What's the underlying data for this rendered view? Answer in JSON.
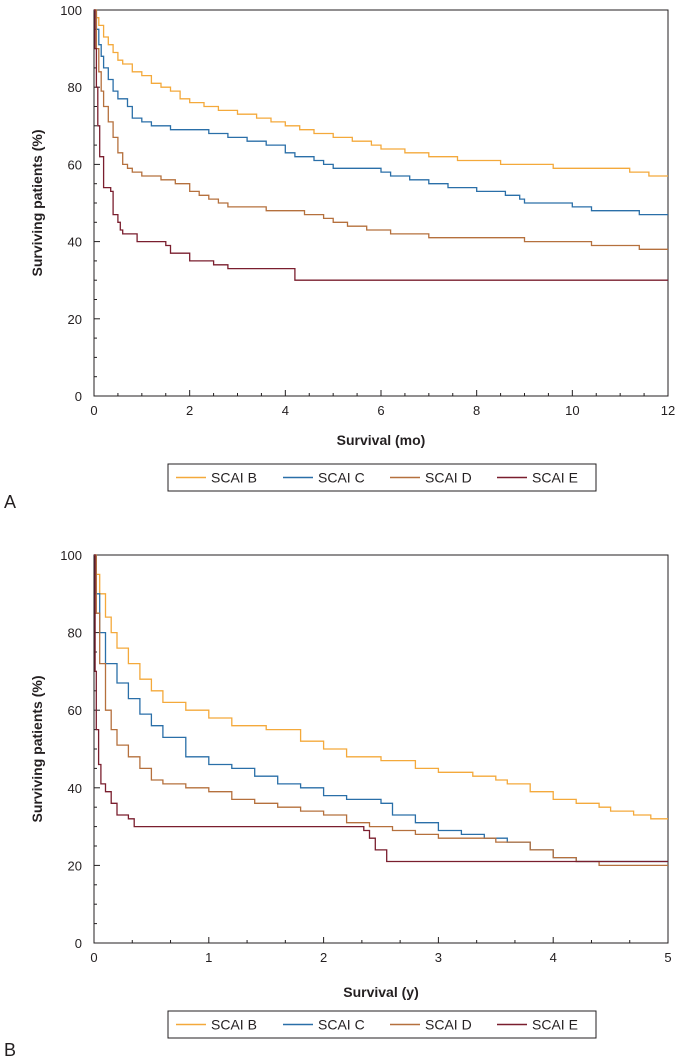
{
  "chart_data": [
    {
      "type": "line",
      "panel_label": "A",
      "title": "",
      "xlabel": "Survival (mo)",
      "ylabel": "Surviving patients (%)",
      "xlim": [
        0,
        12
      ],
      "ylim": [
        0,
        100
      ],
      "xticks": [
        0,
        2,
        4,
        6,
        8,
        10,
        12
      ],
      "yticks": [
        0,
        20,
        40,
        60,
        80,
        100
      ],
      "legend_position": "bottom",
      "series": [
        {
          "name": "SCAI B",
          "color": "#f4a93b",
          "points": [
            [
              0,
              100
            ],
            [
              0.05,
              98
            ],
            [
              0.1,
              96
            ],
            [
              0.2,
              93
            ],
            [
              0.3,
              91
            ],
            [
              0.4,
              89
            ],
            [
              0.5,
              87
            ],
            [
              0.6,
              86
            ],
            [
              0.8,
              84
            ],
            [
              1.0,
              83
            ],
            [
              1.2,
              81
            ],
            [
              1.4,
              80
            ],
            [
              1.6,
              79
            ],
            [
              1.8,
              77
            ],
            [
              2.0,
              76
            ],
            [
              2.3,
              75
            ],
            [
              2.6,
              74
            ],
            [
              3.0,
              73
            ],
            [
              3.4,
              72
            ],
            [
              3.7,
              71
            ],
            [
              4.0,
              70
            ],
            [
              4.3,
              69
            ],
            [
              4.6,
              68
            ],
            [
              5.0,
              67
            ],
            [
              5.4,
              66
            ],
            [
              5.8,
              65
            ],
            [
              6.0,
              64
            ],
            [
              6.5,
              63
            ],
            [
              7.0,
              62
            ],
            [
              7.6,
              61
            ],
            [
              8.0,
              61
            ],
            [
              8.5,
              60
            ],
            [
              9.0,
              60
            ],
            [
              9.6,
              59
            ],
            [
              10.2,
              59
            ],
            [
              10.8,
              59
            ],
            [
              11.2,
              58
            ],
            [
              11.6,
              57
            ],
            [
              12,
              57
            ]
          ]
        },
        {
          "name": "SCAI C",
          "color": "#2a6fa8",
          "points": [
            [
              0,
              100
            ],
            [
              0.05,
              95
            ],
            [
              0.1,
              91
            ],
            [
              0.15,
              88
            ],
            [
              0.2,
              85
            ],
            [
              0.3,
              82
            ],
            [
              0.4,
              79
            ],
            [
              0.5,
              77
            ],
            [
              0.7,
              75
            ],
            [
              0.8,
              72
            ],
            [
              1.0,
              71
            ],
            [
              1.2,
              70
            ],
            [
              1.6,
              69
            ],
            [
              2.0,
              69
            ],
            [
              2.4,
              68
            ],
            [
              2.8,
              67
            ],
            [
              3.2,
              66
            ],
            [
              3.6,
              65
            ],
            [
              4.0,
              63
            ],
            [
              4.2,
              62
            ],
            [
              4.6,
              61
            ],
            [
              4.8,
              60
            ],
            [
              5.0,
              59
            ],
            [
              5.6,
              59
            ],
            [
              6.0,
              58
            ],
            [
              6.2,
              57
            ],
            [
              6.6,
              56
            ],
            [
              7.0,
              55
            ],
            [
              7.4,
              54
            ],
            [
              8.0,
              53
            ],
            [
              8.6,
              52
            ],
            [
              8.9,
              51
            ],
            [
              9.0,
              50
            ],
            [
              9.6,
              50
            ],
            [
              10.0,
              49
            ],
            [
              10.4,
              48
            ],
            [
              11.0,
              48
            ],
            [
              11.4,
              47
            ],
            [
              12,
              47
            ]
          ]
        },
        {
          "name": "SCAI D",
          "color": "#b5703d",
          "points": [
            [
              0,
              100
            ],
            [
              0.05,
              90
            ],
            [
              0.1,
              84
            ],
            [
              0.15,
              79
            ],
            [
              0.2,
              75
            ],
            [
              0.3,
              71
            ],
            [
              0.4,
              67
            ],
            [
              0.5,
              63
            ],
            [
              0.6,
              60
            ],
            [
              0.7,
              59
            ],
            [
              0.8,
              58
            ],
            [
              1.0,
              57
            ],
            [
              1.4,
              56
            ],
            [
              1.7,
              55
            ],
            [
              2.0,
              53
            ],
            [
              2.2,
              52
            ],
            [
              2.4,
              51
            ],
            [
              2.6,
              50
            ],
            [
              2.8,
              49
            ],
            [
              3.2,
              49
            ],
            [
              3.6,
              48
            ],
            [
              4.0,
              48
            ],
            [
              4.4,
              47
            ],
            [
              4.8,
              46
            ],
            [
              5.0,
              45
            ],
            [
              5.3,
              44
            ],
            [
              5.7,
              43
            ],
            [
              6.2,
              42
            ],
            [
              6.6,
              42
            ],
            [
              7.0,
              41
            ],
            [
              8.0,
              41
            ],
            [
              8.5,
              41
            ],
            [
              9.0,
              40
            ],
            [
              9.6,
              40
            ],
            [
              10.4,
              39
            ],
            [
              11.0,
              39
            ],
            [
              11.4,
              38
            ],
            [
              12,
              38
            ]
          ]
        },
        {
          "name": "SCAI E",
          "color": "#7a1e2e",
          "points": [
            [
              0,
              100
            ],
            [
              0.02,
              90
            ],
            [
              0.05,
              80
            ],
            [
              0.08,
              70
            ],
            [
              0.12,
              62
            ],
            [
              0.2,
              54
            ],
            [
              0.35,
              53
            ],
            [
              0.4,
              47
            ],
            [
              0.5,
              45
            ],
            [
              0.55,
              43
            ],
            [
              0.6,
              42
            ],
            [
              0.8,
              42
            ],
            [
              0.9,
              40
            ],
            [
              1.0,
              40
            ],
            [
              1.5,
              39
            ],
            [
              1.6,
              37
            ],
            [
              2.0,
              35
            ],
            [
              2.5,
              34
            ],
            [
              2.8,
              33
            ],
            [
              3.0,
              33
            ],
            [
              3.5,
              33
            ],
            [
              4.0,
              33
            ],
            [
              4.2,
              30
            ],
            [
              5.0,
              30
            ],
            [
              12,
              30
            ]
          ]
        }
      ]
    },
    {
      "type": "line",
      "panel_label": "B",
      "title": "",
      "xlabel": "Survival (y)",
      "ylabel": "Surviving patients (%)",
      "xlim": [
        0,
        5
      ],
      "ylim": [
        0,
        100
      ],
      "xticks": [
        0,
        1,
        2,
        3,
        4,
        5
      ],
      "yticks": [
        0,
        20,
        40,
        60,
        80,
        100
      ],
      "legend_position": "bottom",
      "series": [
        {
          "name": "SCAI B",
          "color": "#f4a93b",
          "points": [
            [
              0,
              100
            ],
            [
              0.02,
              95
            ],
            [
              0.05,
              90
            ],
            [
              0.1,
              84
            ],
            [
              0.15,
              80
            ],
            [
              0.2,
              76
            ],
            [
              0.3,
              72
            ],
            [
              0.4,
              68
            ],
            [
              0.5,
              65
            ],
            [
              0.6,
              62
            ],
            [
              0.8,
              60
            ],
            [
              1.0,
              58
            ],
            [
              1.2,
              56
            ],
            [
              1.5,
              55
            ],
            [
              1.8,
              52
            ],
            [
              2.0,
              50
            ],
            [
              2.2,
              48
            ],
            [
              2.5,
              47
            ],
            [
              2.8,
              45
            ],
            [
              3.0,
              44
            ],
            [
              3.3,
              43
            ],
            [
              3.5,
              42
            ],
            [
              3.6,
              41
            ],
            [
              3.8,
              39
            ],
            [
              4.0,
              37
            ],
            [
              4.2,
              36
            ],
            [
              4.4,
              35
            ],
            [
              4.5,
              34
            ],
            [
              4.7,
              33
            ],
            [
              4.85,
              32
            ],
            [
              5.0,
              32
            ]
          ]
        },
        {
          "name": "SCAI C",
          "color": "#2a6fa8",
          "points": [
            [
              0,
              100
            ],
            [
              0.02,
              90
            ],
            [
              0.05,
              80
            ],
            [
              0.1,
              72
            ],
            [
              0.2,
              67
            ],
            [
              0.3,
              63
            ],
            [
              0.4,
              59
            ],
            [
              0.5,
              56
            ],
            [
              0.6,
              53
            ],
            [
              0.8,
              48
            ],
            [
              1.0,
              46
            ],
            [
              1.2,
              45
            ],
            [
              1.4,
              43
            ],
            [
              1.6,
              41
            ],
            [
              1.8,
              40
            ],
            [
              2.0,
              38
            ],
            [
              2.2,
              37
            ],
            [
              2.5,
              36
            ],
            [
              2.6,
              33
            ],
            [
              2.8,
              31
            ],
            [
              3.0,
              29
            ],
            [
              3.2,
              28
            ],
            [
              3.4,
              27
            ],
            [
              3.6,
              26
            ],
            [
              3.8,
              24
            ],
            [
              4.0,
              22
            ],
            [
              4.2,
              21
            ],
            [
              4.5,
              21
            ],
            [
              5.0,
              21
            ]
          ]
        },
        {
          "name": "SCAI D",
          "color": "#b5703d",
          "points": [
            [
              0,
              100
            ],
            [
              0.02,
              85
            ],
            [
              0.05,
              72
            ],
            [
              0.1,
              60
            ],
            [
              0.15,
              55
            ],
            [
              0.2,
              51
            ],
            [
              0.3,
              48
            ],
            [
              0.4,
              45
            ],
            [
              0.5,
              42
            ],
            [
              0.6,
              41
            ],
            [
              0.8,
              40
            ],
            [
              1.0,
              39
            ],
            [
              1.2,
              37
            ],
            [
              1.4,
              36
            ],
            [
              1.6,
              35
            ],
            [
              1.8,
              34
            ],
            [
              2.0,
              33
            ],
            [
              2.2,
              31
            ],
            [
              2.4,
              30
            ],
            [
              2.6,
              29
            ],
            [
              2.8,
              28
            ],
            [
              3.0,
              27
            ],
            [
              3.3,
              27
            ],
            [
              3.5,
              26
            ],
            [
              3.8,
              24
            ],
            [
              4.0,
              22
            ],
            [
              4.2,
              21
            ],
            [
              4.4,
              20
            ],
            [
              4.6,
              20
            ],
            [
              5.0,
              20
            ]
          ]
        },
        {
          "name": "SCAI E",
          "color": "#7a1e2e",
          "points": [
            [
              0,
              100
            ],
            [
              0.01,
              70
            ],
            [
              0.02,
              55
            ],
            [
              0.04,
              46
            ],
            [
              0.06,
              41
            ],
            [
              0.1,
              39
            ],
            [
              0.15,
              36
            ],
            [
              0.2,
              33
            ],
            [
              0.3,
              32
            ],
            [
              0.35,
              30
            ],
            [
              0.5,
              30
            ],
            [
              1.0,
              30
            ],
            [
              1.5,
              30
            ],
            [
              2.0,
              30
            ],
            [
              2.3,
              30
            ],
            [
              2.35,
              29
            ],
            [
              2.4,
              27
            ],
            [
              2.45,
              24
            ],
            [
              2.55,
              21
            ],
            [
              3.0,
              21
            ],
            [
              3.5,
              21
            ],
            [
              4.0,
              21
            ],
            [
              4.5,
              21
            ],
            [
              5.0,
              21
            ]
          ]
        }
      ]
    }
  ]
}
